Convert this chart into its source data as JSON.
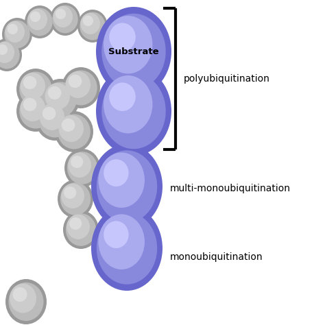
{
  "background_color": "#ffffff",
  "blue_base": "#6666CC",
  "blue_mid": "#8888DD",
  "blue_light": "#AAAAEE",
  "blue_highlight": "#CCCCFF",
  "gray_base": "#999999",
  "gray_mid": "#BBBBBB",
  "gray_light": "#CCCCCC",
  "gray_highlight": "#E0E0E0",
  "substrate_label": "Substrate",
  "label_polyubi": "polyubiquitination",
  "label_multiubi": "multi-monoubiquitination",
  "label_monoubi": "monoubiquitination",
  "figsize": [
    4.74,
    4.74
  ],
  "dpi": 100,
  "xlim": [
    0,
    474
  ],
  "ylim": [
    0,
    474
  ]
}
